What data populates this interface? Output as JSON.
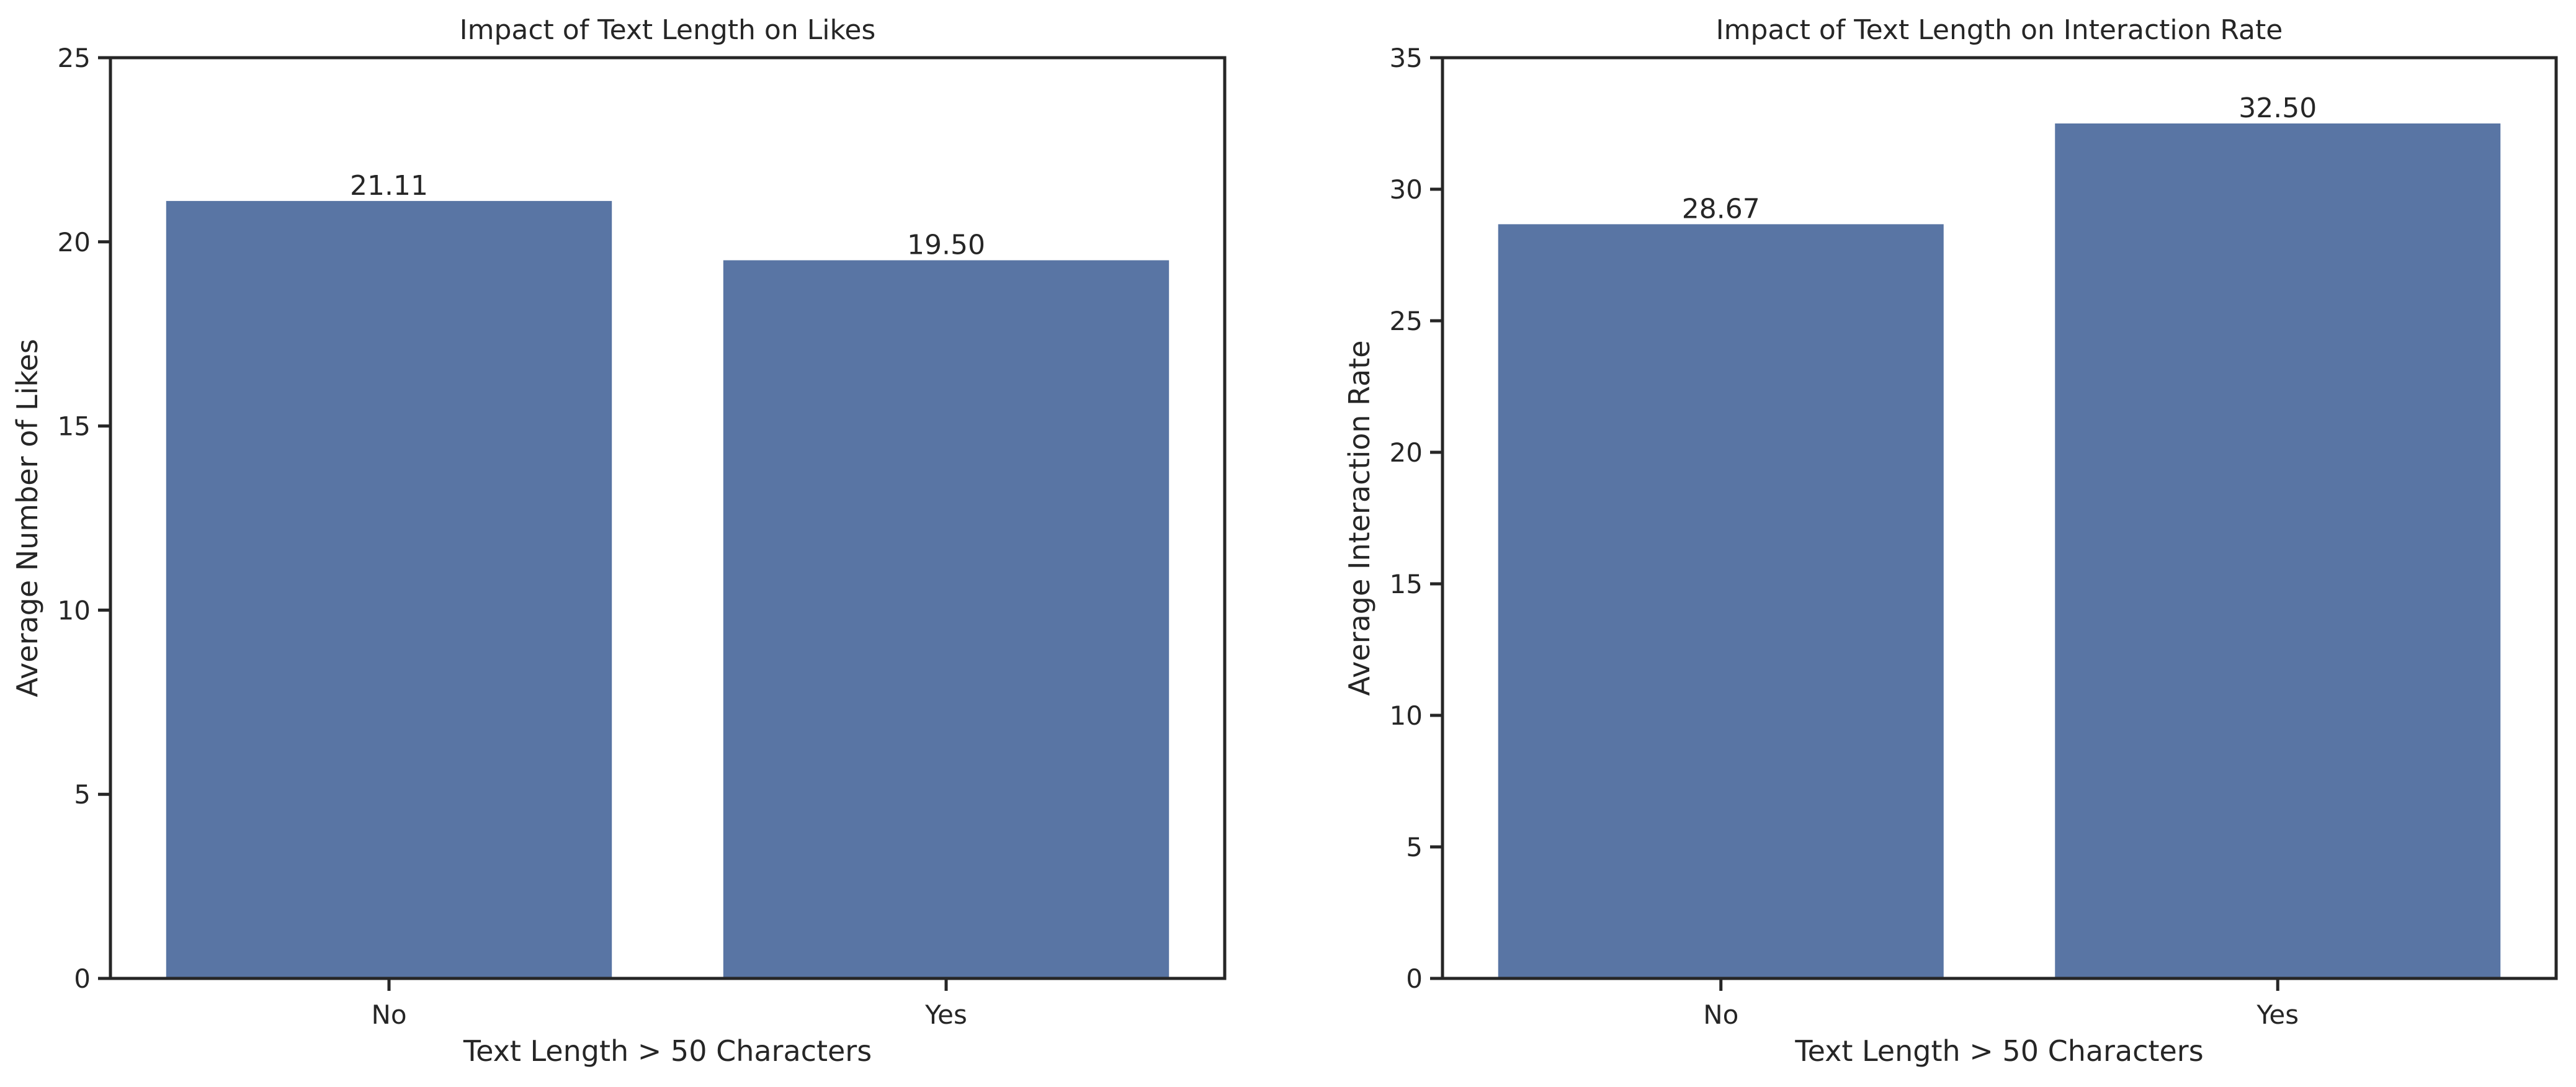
{
  "chart_data": [
    {
      "type": "bar",
      "title": "Impact of Text Length on Likes",
      "xlabel": "Text Length > 50 Characters",
      "ylabel": "Average Number of Likes",
      "categories": [
        "No",
        "Yes"
      ],
      "values": [
        21.11,
        19.5
      ],
      "value_labels": [
        "21.11",
        "19.50"
      ],
      "ylim": [
        0,
        25
      ],
      "yticks": [
        "0",
        "5",
        "10",
        "15",
        "20",
        "25"
      ],
      "grid": false,
      "bar_color": "#5975a4"
    },
    {
      "type": "bar",
      "title": "Impact of Text Length on Interaction Rate",
      "xlabel": "Text Length > 50 Characters",
      "ylabel": "Average Interaction Rate",
      "categories": [
        "No",
        "Yes"
      ],
      "values": [
        28.67,
        32.5
      ],
      "value_labels": [
        "28.67",
        "32.50"
      ],
      "ylim": [
        0,
        35
      ],
      "yticks": [
        "0",
        "5",
        "10",
        "15",
        "20",
        "25",
        "30",
        "35"
      ],
      "grid": false,
      "bar_color": "#5975a4"
    }
  ]
}
